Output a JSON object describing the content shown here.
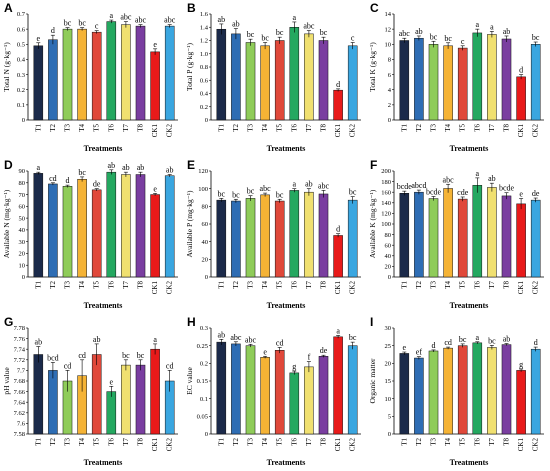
{
  "colors": [
    "#1b2a4a",
    "#2e6db4",
    "#8fcc59",
    "#f5b335",
    "#e0483a",
    "#24a860",
    "#f0e070",
    "#7a3ea0",
    "#e81a1a",
    "#3aa6e0"
  ],
  "chart_data": [
    {
      "type": "bar",
      "panel": "A",
      "ylabel": "Total N (g·kg⁻¹)",
      "xlabel": "Treatments",
      "categories": [
        "T1",
        "T2",
        "T3",
        "T4",
        "T5",
        "T6",
        "T7",
        "T8",
        "CK1",
        "CK2"
      ],
      "ylim": [
        0,
        0.7
      ],
      "yticks": [
        "0",
        "0.1",
        "0.2",
        "0.3",
        "0.4",
        "0.5",
        "0.6",
        "0.7"
      ],
      "values": [
        0.49,
        0.53,
        0.6,
        0.6,
        0.58,
        0.65,
        0.63,
        0.62,
        0.45,
        0.62
      ],
      "errors": [
        0.02,
        0.03,
        0.01,
        0.01,
        0.01,
        0.01,
        0.02,
        0.01,
        0.02,
        0.01
      ],
      "labels": [
        "e",
        "d",
        "bc",
        "bc",
        "c",
        "a",
        "abc",
        "abc",
        "e",
        "abc"
      ]
    },
    {
      "type": "bar",
      "panel": "B",
      "ylabel": "Total P (g·kg⁻¹)",
      "xlabel": "Treatments",
      "categories": [
        "T1",
        "T2",
        "T3",
        "T4",
        "T5",
        "T6",
        "T7",
        "T8",
        "CK1",
        "CK2"
      ],
      "ylim": [
        0,
        1.6
      ],
      "yticks": [
        "0",
        "0.2",
        "0.4",
        "0.6",
        "0.8",
        "1.0",
        "1.2",
        "1.4",
        "1.6"
      ],
      "values": [
        1.37,
        1.3,
        1.17,
        1.12,
        1.2,
        1.4,
        1.3,
        1.2,
        0.45,
        1.12
      ],
      "errors": [
        0.08,
        0.08,
        0.05,
        0.05,
        0.05,
        0.08,
        0.05,
        0.05,
        0.02,
        0.05
      ],
      "labels": [
        "ab",
        "ab",
        "bc",
        "bc",
        "bc",
        "a",
        "abc",
        "bc",
        "d",
        "c"
      ]
    },
    {
      "type": "bar",
      "panel": "C",
      "ylabel": "Total K (g·kg⁻¹)",
      "xlabel": "Treatments",
      "categories": [
        "T1",
        "T2",
        "T3",
        "T4",
        "T5",
        "T6",
        "T7",
        "T8",
        "CK1",
        "CK2"
      ],
      "ylim": [
        0,
        14
      ],
      "yticks": [
        "0",
        "2",
        "4",
        "6",
        "8",
        "10",
        "12",
        "14"
      ],
      "values": [
        10.5,
        10.8,
        10.0,
        9.8,
        9.5,
        11.5,
        11.3,
        10.7,
        5.7,
        10.0
      ],
      "errors": [
        0.3,
        0.3,
        0.4,
        0.4,
        0.3,
        0.5,
        0.4,
        0.4,
        0.3,
        0.3
      ],
      "labels": [
        "abc",
        "ab",
        "bc",
        "bc",
        "c",
        "a",
        "a",
        "ab",
        "d",
        "bc"
      ]
    },
    {
      "type": "bar",
      "panel": "D",
      "ylabel": "Available N (mg·kg⁻¹)",
      "xlabel": "Treatments",
      "categories": [
        "T1",
        "T2",
        "T3",
        "T4",
        "T5",
        "T6",
        "T7",
        "T8",
        "CK1",
        "CK2"
      ],
      "ylim": [
        0,
        90
      ],
      "yticks": [
        "0",
        "10",
        "20",
        "30",
        "40",
        "50",
        "60",
        "70",
        "80",
        "90"
      ],
      "values": [
        88,
        79,
        77,
        83,
        74,
        89,
        87,
        87,
        70,
        86
      ],
      "errors": [
        1,
        1,
        1,
        2,
        1,
        2,
        2,
        2,
        1,
        1
      ],
      "labels": [
        "a",
        "cd",
        "d",
        "bc",
        "de",
        "ab",
        "ab",
        "ab",
        "e",
        "ab"
      ]
    },
    {
      "type": "bar",
      "panel": "E",
      "ylabel": "Available P (mg·kg⁻¹)",
      "xlabel": "Treatments",
      "categories": [
        "T1",
        "T2",
        "T3",
        "T4",
        "T5",
        "T6",
        "T7",
        "T8",
        "CK1",
        "CK2"
      ],
      "ylim": [
        0,
        120
      ],
      "yticks": [
        "0",
        "20",
        "40",
        "60",
        "80",
        "100",
        "120"
      ],
      "values": [
        87,
        86,
        89,
        93,
        86,
        98,
        96,
        94,
        47,
        87
      ],
      "errors": [
        2,
        2,
        3,
        2,
        2,
        2,
        4,
        4,
        2,
        4
      ],
      "labels": [
        "bc",
        "bc",
        "bc",
        "abc",
        "bc",
        "a",
        "ab",
        "abc",
        "d",
        "bc"
      ]
    },
    {
      "type": "bar",
      "panel": "F",
      "ylabel": "Available K (mg·kg⁻¹)",
      "xlabel": "Treatments",
      "categories": [
        "T1",
        "T2",
        "T3",
        "T4",
        "T5",
        "T6",
        "T7",
        "T8",
        "CK1",
        "CK2"
      ],
      "ylim": [
        0,
        200
      ],
      "yticks": [
        "0",
        "20",
        "40",
        "60",
        "80",
        "100",
        "120",
        "140",
        "160",
        "180",
        "200"
      ],
      "values": [
        158,
        160,
        148,
        167,
        147,
        173,
        169,
        153,
        138,
        145
      ],
      "errors": [
        4,
        4,
        4,
        8,
        4,
        14,
        8,
        6,
        10,
        4
      ],
      "labels": [
        "bcde",
        "abcd",
        "bcde",
        "abc",
        "cde",
        "a",
        "ab",
        "bcde",
        "e",
        "de"
      ]
    },
    {
      "type": "bar",
      "panel": "G",
      "ylabel": "pH value",
      "xlabel": "Treatments",
      "categories": [
        "T1",
        "T2",
        "T3",
        "T4",
        "T5",
        "T6",
        "T7",
        "T8",
        "CK1",
        "CK2"
      ],
      "ylim": [
        7.58,
        7.78
      ],
      "yticks": [
        "7.58",
        "7.6",
        "7.62",
        "7.64",
        "7.66",
        "7.68",
        "7.7",
        "7.72",
        "7.74",
        "7.76",
        "7.78"
      ],
      "values": [
        7.73,
        7.7,
        7.68,
        7.69,
        7.73,
        7.66,
        7.71,
        7.71,
        7.74,
        7.68
      ],
      "errors": [
        0.015,
        0.015,
        0.02,
        0.03,
        0.02,
        0.01,
        0.01,
        0.01,
        0.01,
        0.02
      ],
      "labels": [
        "ab",
        "bcd",
        "cd",
        "cd",
        "ab",
        "e",
        "bc",
        "bc",
        "a",
        "cd"
      ]
    },
    {
      "type": "bar",
      "panel": "H",
      "ylabel": "EC value",
      "xlabel": "Treatments",
      "categories": [
        "T1",
        "T2",
        "T3",
        "T4",
        "T5",
        "T6",
        "T7",
        "T8",
        "CK1",
        "CK2"
      ],
      "ylim": [
        0,
        0.3
      ],
      "yticks": [
        "0",
        "0.05",
        "0.1",
        "0.15",
        "0.2",
        "0.25",
        "0.3"
      ],
      "values": [
        0.26,
        0.255,
        0.25,
        0.217,
        0.237,
        0.173,
        0.19,
        0.22,
        0.275,
        0.25
      ],
      "errors": [
        0.008,
        0.006,
        0.004,
        0.003,
        0.008,
        0.005,
        0.015,
        0.003,
        0.004,
        0.01
      ],
      "labels": [
        "ab",
        "abc",
        "abc",
        "e",
        "cd",
        "g",
        "f",
        "de",
        "a",
        "bc"
      ]
    },
    {
      "type": "bar",
      "panel": "I",
      "ylabel": "Organic matter",
      "xlabel": "Treatments",
      "categories": [
        "T1",
        "T2",
        "T3",
        "T4",
        "T5",
        "T6",
        "T7",
        "T8",
        "CK1",
        "CK2"
      ],
      "ylim": [
        0,
        30
      ],
      "yticks": [
        "0",
        "5",
        "10",
        "15",
        "20",
        "25",
        "30"
      ],
      "values": [
        22.8,
        21.5,
        23.5,
        24.3,
        25.0,
        25.8,
        24.5,
        25.3,
        18.0,
        24.0
      ],
      "errors": [
        0.4,
        0.4,
        0.3,
        0.3,
        0.5,
        0.3,
        0.6,
        0.3,
        0.4,
        0.6
      ],
      "labels": [
        "e",
        "ef",
        "d",
        "cd",
        "bc",
        "a",
        "bc",
        "ab",
        "g",
        "d"
      ]
    }
  ]
}
